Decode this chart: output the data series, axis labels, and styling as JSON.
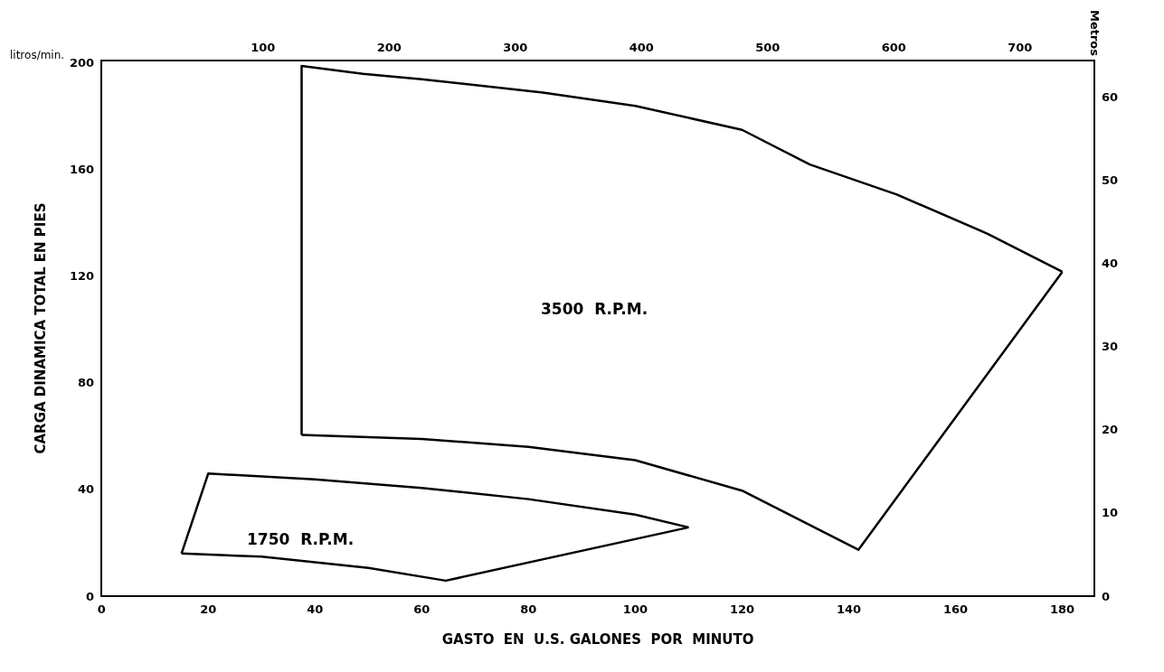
{
  "chart_data": {
    "type": "line",
    "xlabel": "GASTO  EN  U.S. GALONES  POR  MINUTO",
    "ylabel": "CARGA DINAMICA TOTAL EN PIES",
    "y2label": "Metros",
    "x2label": "litros/min.",
    "xlim": [
      0,
      186
    ],
    "xticks": [
      0,
      20,
      40,
      60,
      80,
      100,
      120,
      140,
      160,
      180
    ],
    "ylim": [
      0,
      201
    ],
    "yticks": [
      0,
      40,
      80,
      120,
      160,
      200
    ],
    "y2lim": [
      0,
      64.4
    ],
    "y2ticks": [
      0,
      10,
      20,
      30,
      40,
      50,
      60
    ],
    "x2lim": [
      -28,
      759
    ],
    "x2ticks": [
      100,
      200,
      300,
      400,
      500,
      600,
      700
    ],
    "grid": false,
    "marker": "none",
    "line_style": "solid",
    "series": [
      {
        "color": "#000000",
        "x": [
          37.5,
          37.5,
          49,
          60,
          82.7,
          100,
          120,
          132.7,
          149,
          166,
          180
        ],
        "values": [
          60.5,
          199,
          196,
          194,
          189,
          184,
          175,
          162,
          150.7,
          136,
          121.7
        ]
      },
      {
        "color": "#000000",
        "x": [
          37.5,
          60,
          80,
          100,
          120,
          141.8,
          180
        ],
        "values": [
          60.5,
          59,
          56,
          51,
          39.6,
          17.4,
          121.7
        ]
      },
      {
        "color": "#000000",
        "x": [
          15,
          20,
          40,
          60,
          80,
          100,
          110
        ],
        "values": [
          16,
          46,
          43.8,
          40.6,
          36.4,
          30.6,
          25.8
        ]
      },
      {
        "color": "#000000",
        "x": [
          15,
          30,
          50,
          64.5,
          110
        ],
        "values": [
          16,
          14.8,
          10.6,
          5.8,
          25.8
        ]
      }
    ],
    "annotations": [
      "3500  R.P.M.",
      "1750  R.P.M."
    ]
  }
}
